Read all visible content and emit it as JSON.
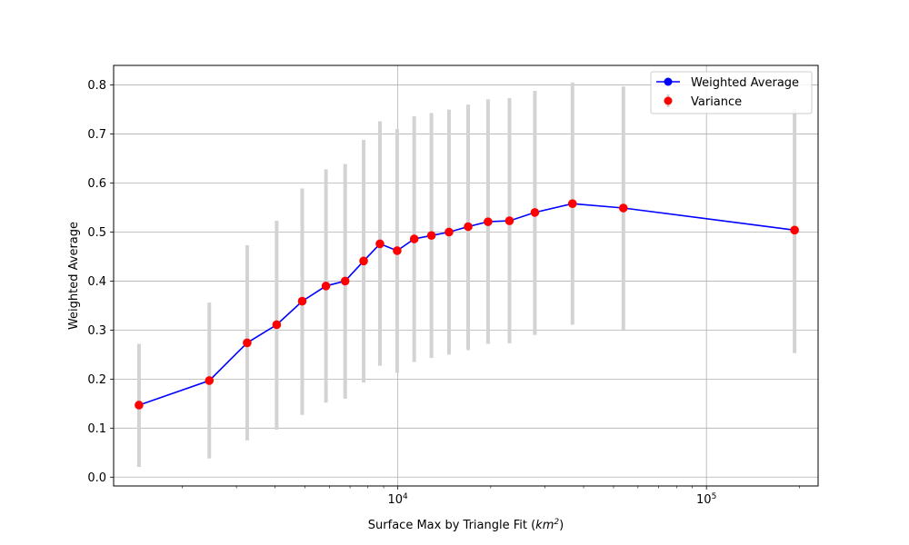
{
  "chart_data": {
    "type": "line",
    "x_scale": "log",
    "xlim": [
      1200,
      230000
    ],
    "ylim": [
      -0.018,
      0.84
    ],
    "xlabel": "Surface Max by Triangle Fit (km²)",
    "xlabel_base": "Surface Max by Triangle Fit (",
    "xlabel_unit": "km",
    "xlabel_sup": "2",
    "xlabel_close": ")",
    "ylabel": "Weighted Average",
    "grid": true,
    "legend_position": "top-right",
    "x_ticks": [
      {
        "value": 10000,
        "base": "10",
        "exp": "4"
      },
      {
        "value": 100000,
        "base": "10",
        "exp": "5"
      }
    ],
    "y_ticks": [
      "0.0",
      "0.1",
      "0.2",
      "0.3",
      "0.4",
      "0.5",
      "0.6",
      "0.7",
      "0.8"
    ],
    "series": [
      {
        "name": "Weighted Average",
        "color": "#0000ff",
        "x": [
          1450,
          2450,
          3250,
          4050,
          4900,
          5850,
          6750,
          7750,
          8750,
          9950,
          11300,
          12850,
          14650,
          16900,
          19600,
          23000,
          27800,
          36800,
          53800,
          193000
        ],
        "y": [
          0.147,
          0.197,
          0.274,
          0.311,
          0.359,
          0.39,
          0.4,
          0.441,
          0.476,
          0.462,
          0.486,
          0.493,
          0.5,
          0.511,
          0.521,
          0.523,
          0.54,
          0.558,
          0.549,
          0.504
        ]
      },
      {
        "name": "Variance",
        "color": "#ff0000",
        "error_color": "#d3d3d3",
        "x": [
          1450,
          2450,
          3250,
          4050,
          4900,
          5850,
          6750,
          7750,
          8750,
          9950,
          11300,
          12850,
          14650,
          16900,
          19600,
          23000,
          27800,
          36800,
          53800,
          193000
        ],
        "y": [
          0.147,
          0.197,
          0.274,
          0.311,
          0.359,
          0.39,
          0.4,
          0.441,
          0.476,
          0.462,
          0.486,
          0.493,
          0.5,
          0.511,
          0.521,
          0.523,
          0.54,
          0.558,
          0.549,
          0.504
        ],
        "err_low": [
          0.021,
          0.038,
          0.075,
          0.097,
          0.127,
          0.152,
          0.16,
          0.193,
          0.227,
          0.213,
          0.235,
          0.243,
          0.25,
          0.259,
          0.272,
          0.273,
          0.29,
          0.311,
          0.301,
          0.253
        ],
        "err_high": [
          0.272,
          0.356,
          0.473,
          0.523,
          0.589,
          0.628,
          0.639,
          0.688,
          0.726,
          0.71,
          0.736,
          0.743,
          0.75,
          0.76,
          0.771,
          0.773,
          0.788,
          0.805,
          0.797,
          0.751
        ]
      }
    ]
  }
}
